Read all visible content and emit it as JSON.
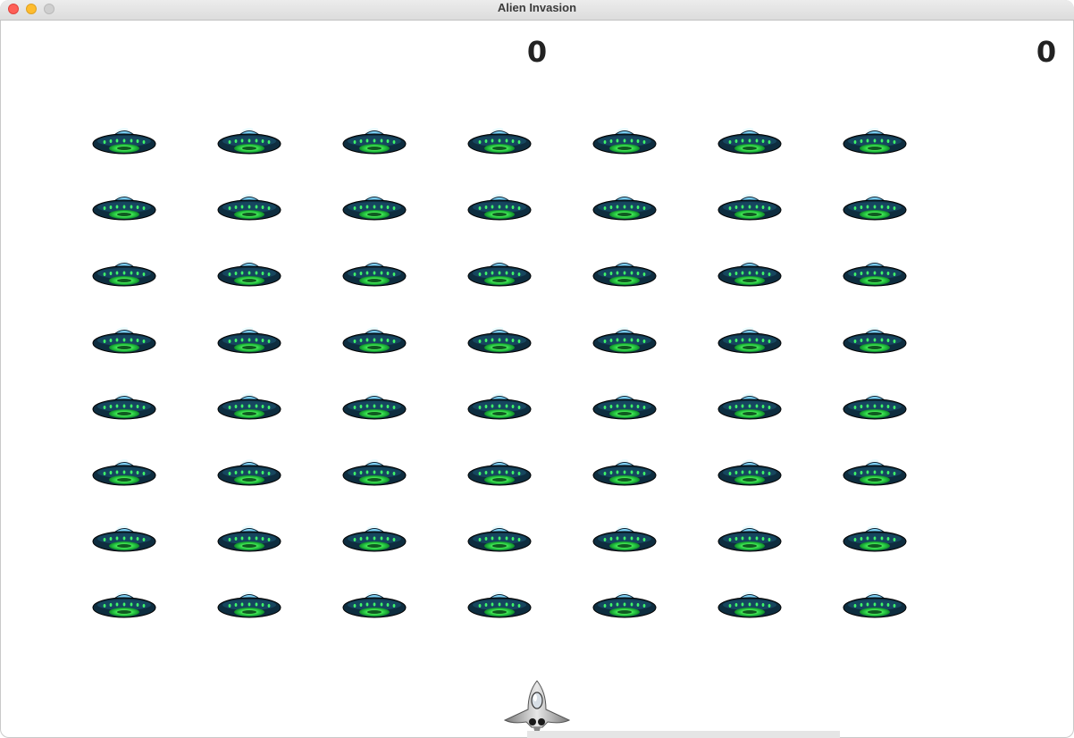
{
  "window": {
    "title": "Alien Invasion"
  },
  "scoreboard": {
    "score": "0",
    "high_score": "0"
  },
  "fleet": {
    "rows": 8,
    "columns": 7,
    "alien_icon": "ufo-icon"
  },
  "player": {
    "ship_icon": "rocket-ship-icon"
  },
  "colors": {
    "dome": "#5cc7f2",
    "saucer_body": "#0e2d3f",
    "lights": "#3ef56a",
    "ship": "#a8a8a8"
  }
}
